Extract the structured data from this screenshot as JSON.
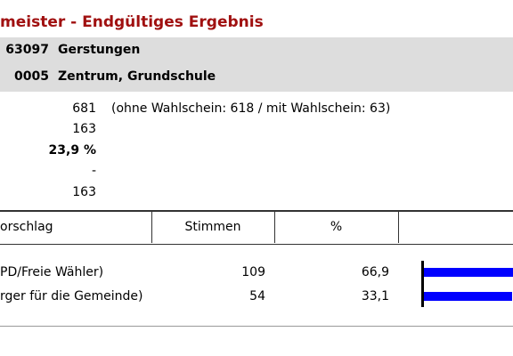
{
  "header": {
    "title": "meister - Endgültiges Ergebnis",
    "area_code": "63097",
    "area_name": "Gerstungen",
    "district_code": "0005",
    "district_name": "Zentrum, Grundschule"
  },
  "stats": {
    "voters": "681",
    "voters_note": "(ohne Wahlschein: 618 / mit Wahlschein: 63)",
    "votes": "163",
    "turnout": "23,9 %",
    "invalid": "-",
    "valid": "163"
  },
  "table": {
    "headers": [
      "orschlag",
      "Stimmen",
      "%"
    ],
    "rows": [
      {
        "name": "PD/Freie Wähler)",
        "votes": "109",
        "percent": {
          "value": 66.9,
          "label": "66,9"
        }
      },
      {
        "name": "rger für die Gemeinde)",
        "votes": "54",
        "percent": {
          "value": 33.1,
          "label": "33,1"
        }
      }
    ]
  }
}
